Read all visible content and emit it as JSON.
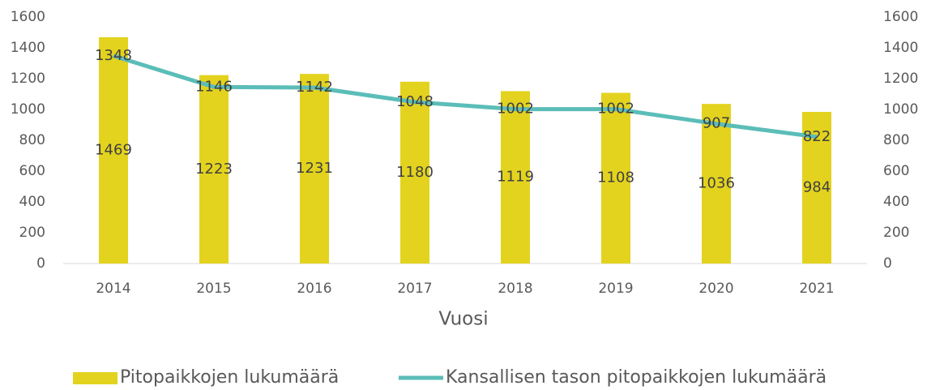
{
  "chart_data": {
    "type": "bar_line",
    "x_label": "Vuosi",
    "categories": [
      "2014",
      "2015",
      "2016",
      "2017",
      "2018",
      "2019",
      "2020",
      "2021"
    ],
    "series": [
      {
        "name": "Pitopaikkojen lukumäärä",
        "type": "bar",
        "color": "#e3d31e",
        "values": [
          1469,
          1223,
          1231,
          1180,
          1119,
          1108,
          1036,
          984
        ]
      },
      {
        "name": "Kansallisen tason pitopaikkojen lukumäärä",
        "type": "line",
        "axis": "y2",
        "color": "#5bbdb8",
        "values": [
          1348,
          1146,
          1142,
          1048,
          1002,
          1002,
          907,
          822
        ]
      }
    ],
    "ylim": [
      0,
      1600
    ],
    "yticks": [
      0,
      200,
      400,
      600,
      800,
      1000,
      1200,
      1400,
      1600
    ],
    "y2lim": [
      0,
      1600
    ],
    "y2ticks": [
      0,
      200,
      400,
      600,
      800,
      1000,
      1200,
      1400,
      1600
    ],
    "grid": false,
    "legend": "bottom"
  }
}
